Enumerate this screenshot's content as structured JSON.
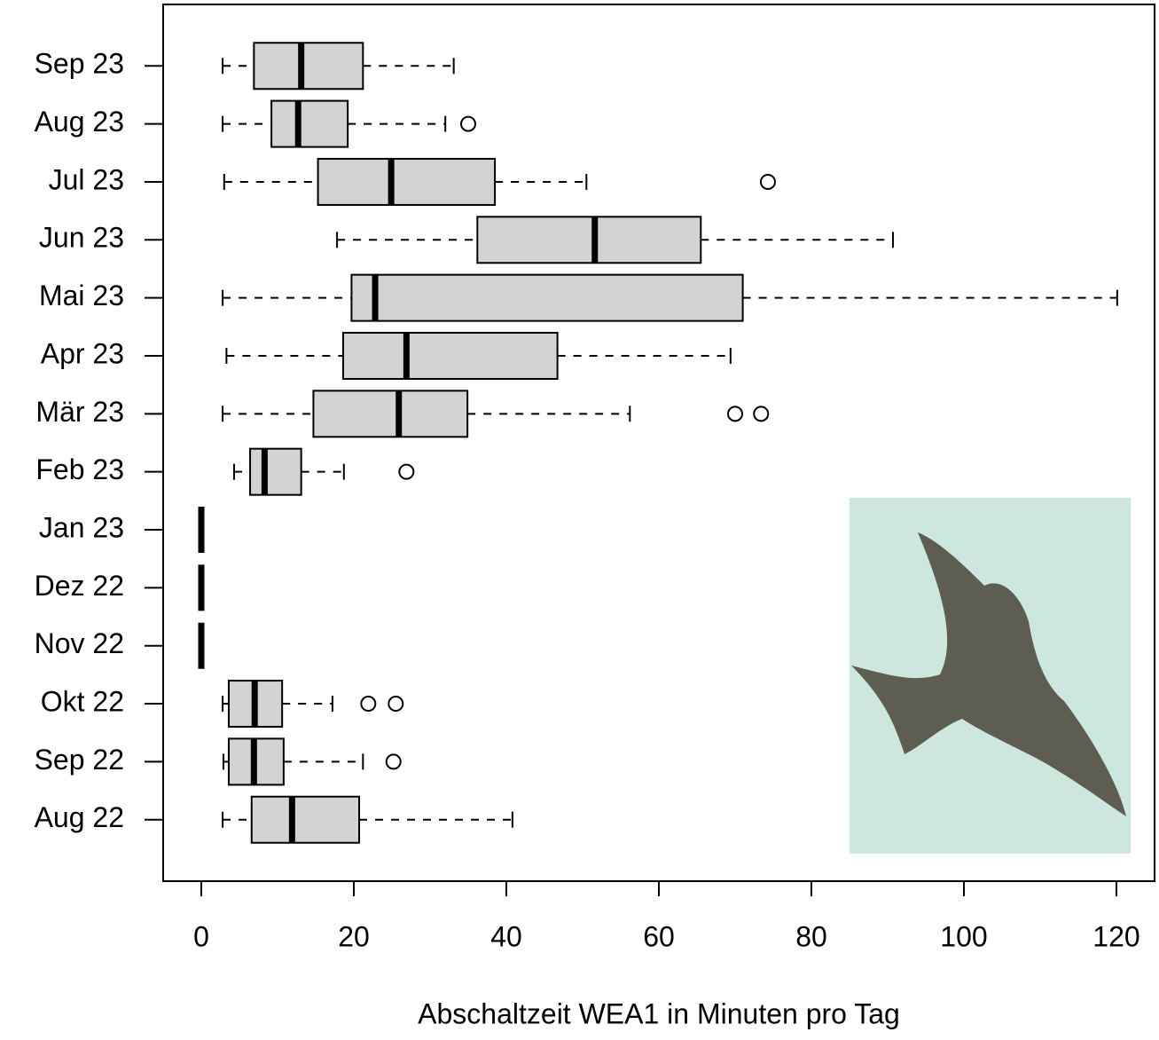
{
  "chart_data": {
    "type": "boxplot",
    "orientation": "horizontal",
    "xlabel": "Abschaltzeit WEA1 in Minuten pro Tag",
    "categories": [
      "Aug 22",
      "Sep 22",
      "Okt 22",
      "Nov 22",
      "Dez 22",
      "Jan 23",
      "Feb 23",
      "Mär 23",
      "Apr 23",
      "Mai 23",
      "Jun 23",
      "Jul 23",
      "Aug 23",
      "Sep 23"
    ],
    "min": [
      2.8,
      2.9,
      2.8,
      0,
      0,
      0,
      4.3,
      2.8,
      3.3,
      2.8,
      17.8,
      3.0,
      2.8,
      2.8
    ],
    "q1": [
      6.6,
      3.6,
      3.6,
      0,
      0,
      0,
      6.4,
      14.7,
      18.6,
      19.7,
      36.2,
      15.3,
      9.2,
      6.9
    ],
    "median": [
      11.9,
      6.9,
      7.0,
      0,
      0,
      0,
      8.3,
      25.9,
      26.9,
      22.8,
      51.6,
      24.9,
      12.7,
      13.1
    ],
    "q3": [
      20.7,
      10.8,
      10.6,
      0,
      0,
      0,
      13.1,
      34.9,
      46.7,
      71.0,
      65.5,
      38.5,
      19.2,
      21.2
    ],
    "max": [
      40.8,
      21.2,
      17.2,
      0,
      0,
      0,
      18.7,
      56.2,
      69.4,
      120.1,
      90.7,
      50.5,
      32.0,
      33.1
    ],
    "outliers": [
      [],
      [
        25.2
      ],
      [
        21.9,
        25.5
      ],
      [],
      [],
      [],
      [
        26.9
      ],
      [
        70.0,
        73.4
      ],
      [],
      [],
      [],
      [
        74.3
      ],
      [
        35.0
      ],
      []
    ],
    "box_color": "#d3d3d3",
    "xlim": [
      -5,
      125
    ],
    "xticks": [
      0,
      20,
      40,
      60,
      80,
      100,
      120
    ]
  }
}
